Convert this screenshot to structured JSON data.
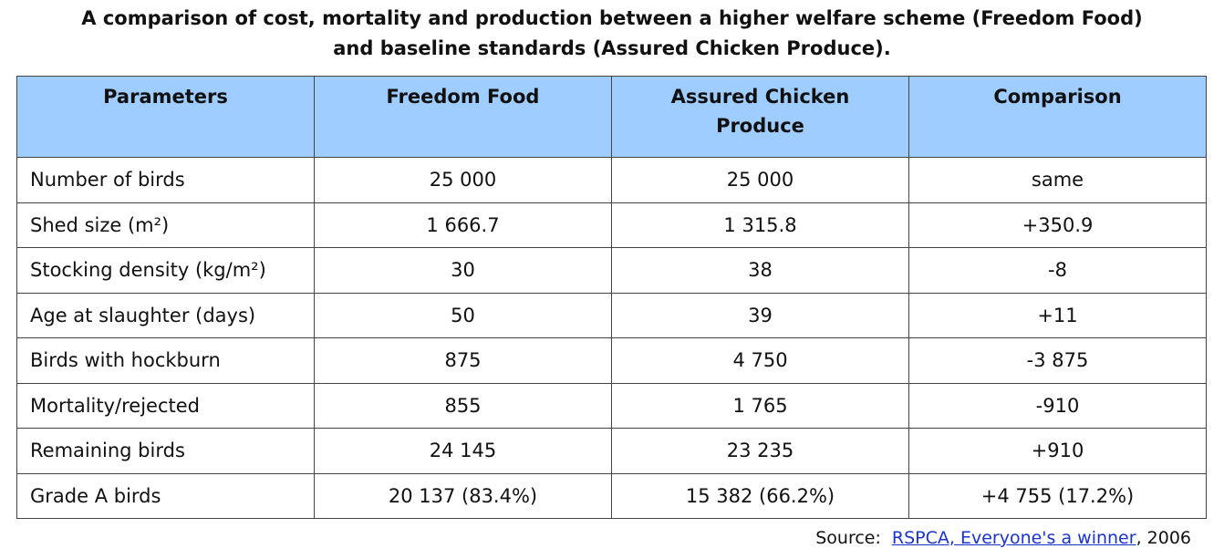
{
  "title": [
    "A comparison of cost, mortality and production between a higher welfare scheme (Freedom Food)",
    "and baseline standards (Assured Chicken Produce)."
  ],
  "table": {
    "header": [
      "Parameters",
      "Freedom Food",
      "Assured Chicken Produce",
      "Comparison"
    ],
    "rows": [
      [
        "Number of birds",
        "25 000",
        "25 000",
        "same"
      ],
      [
        "Shed size (m²)",
        "1 666.7",
        "1 315.8",
        "+350.9"
      ],
      [
        "Stocking density (kg/m²)",
        "30",
        "38",
        "-8"
      ],
      [
        "Age at slaughter (days)",
        "50",
        "39",
        "+11"
      ],
      [
        "Birds with hockburn",
        "875",
        "4 750",
        "-3 875"
      ],
      [
        "Mortality/rejected",
        "855",
        "1 765",
        "-910"
      ],
      [
        "Remaining birds",
        "24 145",
        "23 235",
        "+910"
      ],
      [
        "Grade A birds",
        "20 137 (83.4%)",
        "15 382 (66.2%)",
        "+4 755 (17.2%)"
      ]
    ]
  },
  "source": {
    "label": "Source:",
    "link": "RSPCA, Everyone's a winner",
    "rest": ", 2006"
  }
}
